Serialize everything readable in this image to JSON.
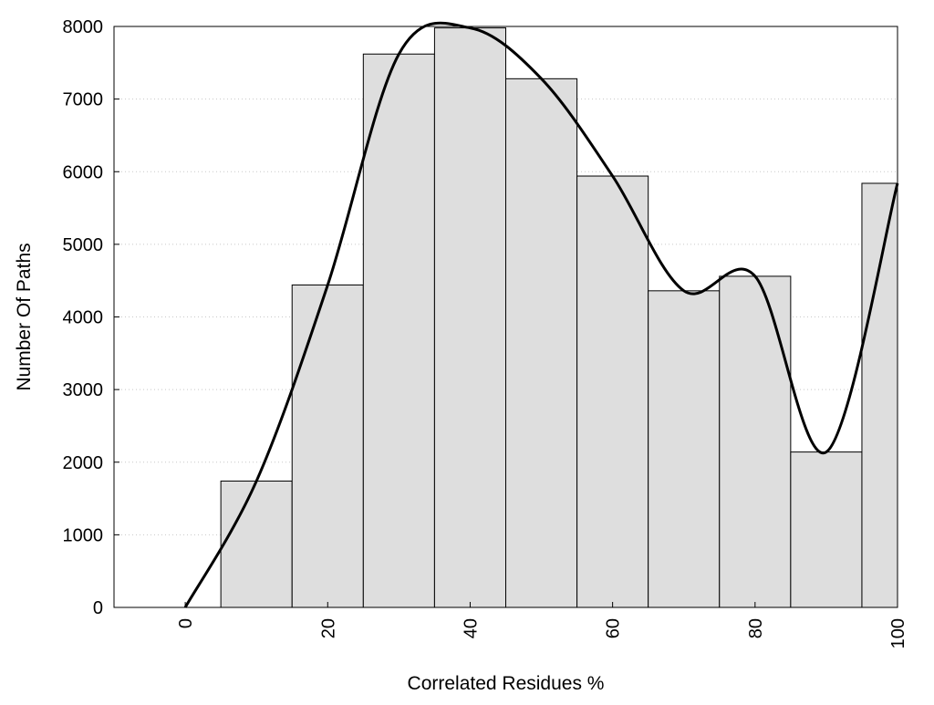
{
  "chart_data": {
    "type": "bar",
    "xlabel": "Correlated Residues %",
    "ylabel": "Number Of Paths",
    "xlim": [
      -10,
      100
    ],
    "ylim": [
      0,
      8000
    ],
    "x_ticks": [
      0,
      20,
      40,
      60,
      80,
      100
    ],
    "y_ticks": [
      0,
      1000,
      2000,
      3000,
      4000,
      5000,
      6000,
      7000,
      8000
    ],
    "grid": "horizontal dotted",
    "legend": "none",
    "bars": [
      {
        "x": 0,
        "value": 0
      },
      {
        "x": 10,
        "value": 1740
      },
      {
        "x": 20,
        "value": 4440
      },
      {
        "x": 30,
        "value": 7620
      },
      {
        "x": 40,
        "value": 7980
      },
      {
        "x": 50,
        "value": 7280
      },
      {
        "x": 60,
        "value": 5940
      },
      {
        "x": 70,
        "value": 4360
      },
      {
        "x": 80,
        "value": 4560
      },
      {
        "x": 90,
        "value": 2140
      },
      {
        "x": 100,
        "value": 5840
      }
    ],
    "bin_width": 10,
    "curve": {
      "type": "line",
      "x": [
        0,
        10,
        20,
        30,
        40,
        50,
        60,
        70,
        80,
        90,
        100
      ],
      "values": [
        0,
        1740,
        4440,
        7620,
        7980,
        7280,
        5940,
        4360,
        4560,
        2140,
        5840
      ]
    },
    "colors": {
      "bar_fill": "#dedede",
      "bar_stroke": "#000000",
      "curve": "#000000",
      "grid": "#c8c8c8"
    }
  }
}
